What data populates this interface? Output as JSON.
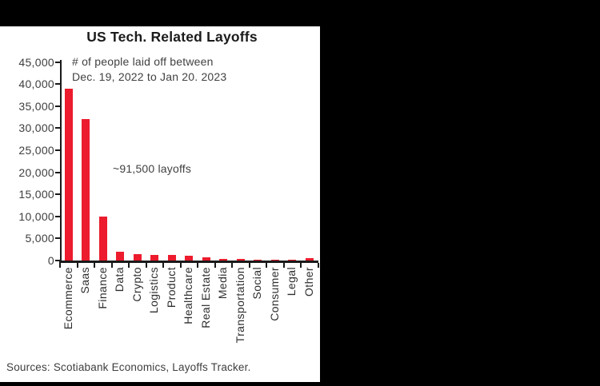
{
  "window": {
    "background_color": "#000000",
    "panel_background_color": "#ffffff"
  },
  "chart_data": {
    "type": "bar",
    "title": "US Tech. Related Layoffs",
    "annotation_line1": "# of people laid off between",
    "annotation_line2": "Dec. 19, 2022 to Jan 20. 2023",
    "center_annotation": "~91,500 layoffs",
    "categories": [
      "Ecommerce",
      "Saas",
      "Finance",
      "Data",
      "Crypto",
      "Logistics",
      "Product",
      "Healthcare",
      "Real Estate",
      "Media",
      "Transportation",
      "Social",
      "Consumer",
      "Legal",
      "Other"
    ],
    "values": [
      39000,
      32000,
      10000,
      2000,
      1500,
      1200,
      1200,
      1000,
      700,
      400,
      300,
      250,
      200,
      150,
      500
    ],
    "bar_color": "#EC1B2D",
    "axis_color": "#1a1a1a",
    "ylim": [
      0,
      45000
    ],
    "ytick_step": 5000,
    "ytick_labels": [
      "45,000",
      "40,000",
      "35,000",
      "30,000",
      "25,000",
      "20,000",
      "15,000",
      "10,000",
      "5,000",
      "0"
    ],
    "grid": false,
    "legend": "none",
    "source_note": "Sources: Scotiabank Economics, Layoffs Tracker."
  }
}
